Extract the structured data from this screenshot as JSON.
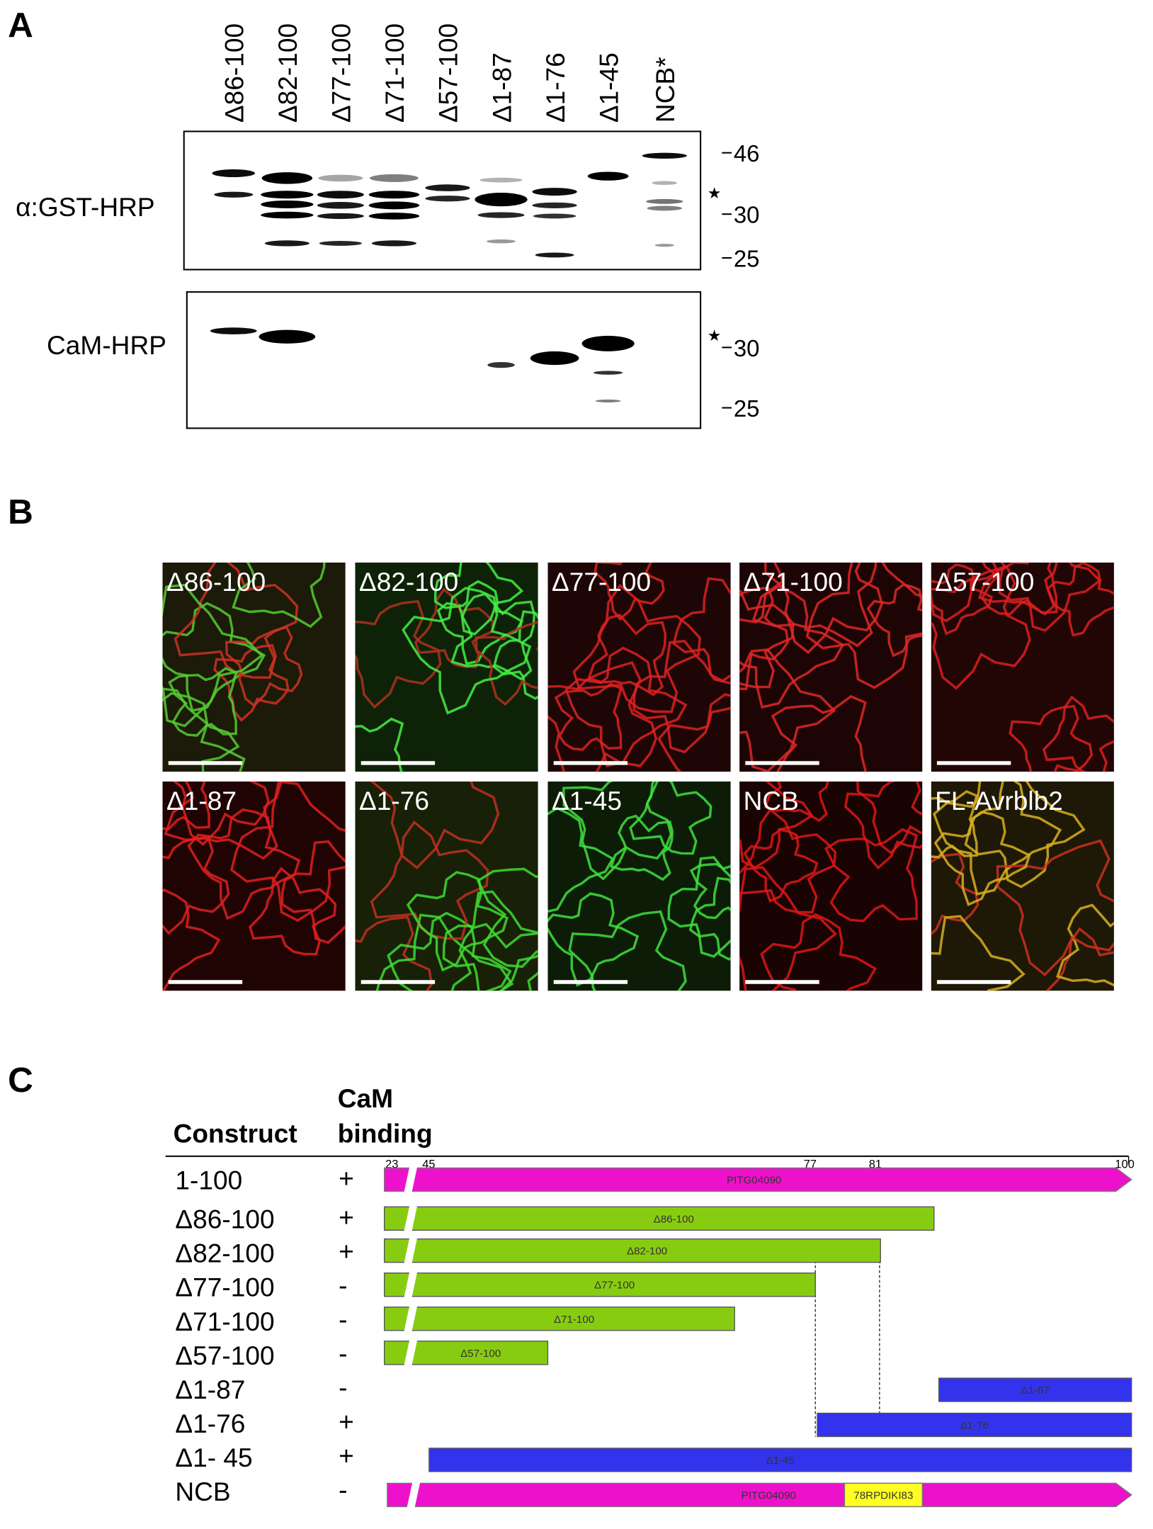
{
  "panel_a": {
    "label": "A",
    "lanes": [
      "Δ86-100",
      "Δ82-100",
      "Δ77-100",
      "Δ71-100",
      "Δ57-100",
      "Δ1-87",
      "Δ1-76",
      "Δ1-45",
      "NCB*"
    ],
    "blots": [
      {
        "probe": "α:GST-HRP",
        "markers": [
          46,
          30,
          25
        ],
        "band_mark": "★"
      },
      {
        "probe": "CaM-HRP",
        "markers": [
          30,
          25
        ],
        "band_mark": "★"
      }
    ]
  },
  "panel_b": {
    "label": "B",
    "images": [
      "Δ86-100",
      "Δ82-100",
      "Δ77-100",
      "Δ71-100",
      "Δ57-100",
      "Δ1-87",
      "Δ1-76",
      "Δ1-45",
      "NCB",
      "FL-Avrblb2"
    ]
  },
  "panel_c": {
    "label": "C",
    "header": {
      "construct": "Construct",
      "binding": [
        "CaM",
        "binding"
      ]
    },
    "positions": [
      23,
      45,
      77,
      81,
      100
    ],
    "rows": [
      {
        "construct": "1-100",
        "binding": "+",
        "bar_label": "PITG04090"
      },
      {
        "construct": "Δ86-100",
        "binding": "+",
        "bar_label": "Δ86-100"
      },
      {
        "construct": "Δ82-100",
        "binding": "+",
        "bar_label": "Δ82-100"
      },
      {
        "construct": "Δ77-100",
        "binding": "-",
        "bar_label": "Δ77-100"
      },
      {
        "construct": "Δ71-100",
        "binding": "-",
        "bar_label": "Δ71-100"
      },
      {
        "construct": "Δ57-100",
        "binding": "-",
        "bar_label": "Δ57-100"
      },
      {
        "construct": "Δ1-87",
        "binding": "-",
        "bar_label": "Δ1-87"
      },
      {
        "construct": "Δ1-76",
        "binding": "+",
        "bar_label": "Δ1-76"
      },
      {
        "construct": "Δ1- 45",
        "binding": "+",
        "bar_label": "Δ1-45"
      },
      {
        "construct": "NCB",
        "binding": "-",
        "bar_label": "PITG04090"
      }
    ],
    "motif": "78RPDIKI83"
  }
}
